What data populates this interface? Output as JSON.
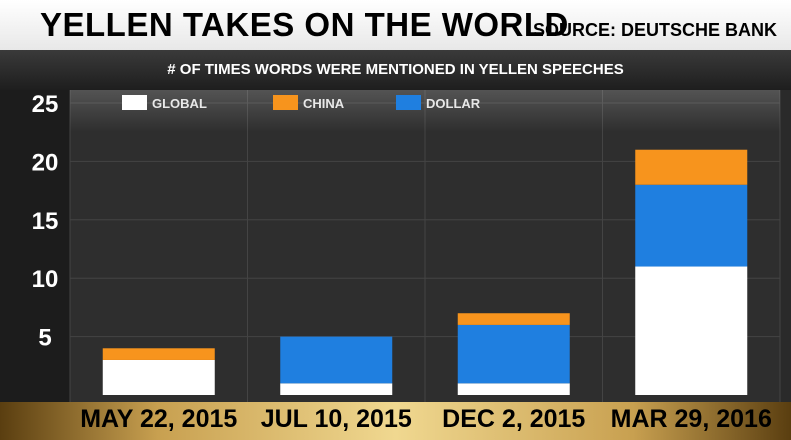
{
  "header": {
    "title": "YELLEN TAKES ON THE WORLD",
    "source": "SOURCE: DEUTSCHE BANK"
  },
  "chart_data": {
    "type": "bar",
    "stacked": true,
    "title": "# OF TIMES WORDS WERE MENTIONED IN YELLEN SPEECHES",
    "categories": [
      "MAY 22, 2015",
      "JUL 10, 2015",
      "DEC 2, 2015",
      "MAR 29, 2016"
    ],
    "series": [
      {
        "name": "GLOBAL",
        "color": "#ffffff",
        "values": [
          3,
          1,
          1,
          11
        ]
      },
      {
        "name": "DOLLAR",
        "color": "#1f7fe0",
        "values": [
          0,
          4,
          5,
          7
        ]
      },
      {
        "name": "CHINA",
        "color": "#f7941d",
        "values": [
          1,
          0,
          1,
          3
        ]
      }
    ],
    "legend_order": [
      "GLOBAL",
      "CHINA",
      "DOLLAR"
    ],
    "legend_position": "top-left",
    "yticks": [
      5,
      10,
      15,
      20,
      25
    ],
    "ylim": [
      0,
      26
    ],
    "grid": true
  }
}
